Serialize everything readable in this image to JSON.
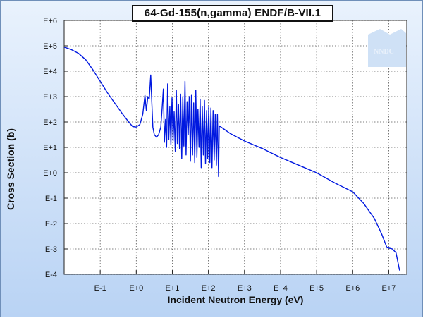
{
  "chart_data": {
    "type": "line",
    "title": "64-Gd-155(n,gamma) ENDF/B-VII.1",
    "xlabel": "Incident Neutron Energy (eV)",
    "ylabel": "Cross Section (b)",
    "x_scale": "log",
    "y_scale": "log",
    "xlim_log10": [
      -2.0,
      7.5
    ],
    "ylim_log10": [
      -4.0,
      6.0
    ],
    "x_ticks": [
      {
        "exp": -1,
        "label": "E-1"
      },
      {
        "exp": 0,
        "label": "E+0"
      },
      {
        "exp": 1,
        "label": "E+1"
      },
      {
        "exp": 2,
        "label": "E+2"
      },
      {
        "exp": 3,
        "label": "E+3"
      },
      {
        "exp": 4,
        "label": "E+4"
      },
      {
        "exp": 5,
        "label": "E+5"
      },
      {
        "exp": 6,
        "label": "E+6"
      },
      {
        "exp": 7,
        "label": "E+7"
      }
    ],
    "y_ticks": [
      {
        "exp": 6,
        "label": "E+6"
      },
      {
        "exp": 5,
        "label": "E+5"
      },
      {
        "exp": 4,
        "label": "E+4"
      },
      {
        "exp": 3,
        "label": "E+3"
      },
      {
        "exp": 2,
        "label": "E+2"
      },
      {
        "exp": 1,
        "label": "E+1"
      },
      {
        "exp": 0,
        "label": "E+0"
      },
      {
        "exp": -1,
        "label": "E-1"
      },
      {
        "exp": -2,
        "label": "E-2"
      },
      {
        "exp": -3,
        "label": "E-3"
      },
      {
        "exp": -4,
        "label": "E-4"
      }
    ],
    "grid": true,
    "series": [
      {
        "name": "64-Gd-155(n,gamma)",
        "color": "#0018e0",
        "points_log10": [
          [
            -2.0,
            4.95
          ],
          [
            -1.8,
            4.85
          ],
          [
            -1.6,
            4.7
          ],
          [
            -1.4,
            4.45
          ],
          [
            -1.2,
            4.05
          ],
          [
            -1.0,
            3.6
          ],
          [
            -0.8,
            3.15
          ],
          [
            -0.6,
            2.75
          ],
          [
            -0.4,
            2.35
          ],
          [
            -0.2,
            1.98
          ],
          [
            -0.1,
            1.82
          ],
          [
            0.0,
            1.8
          ],
          [
            0.1,
            1.9
          ],
          [
            0.18,
            2.3
          ],
          [
            0.24,
            3.05
          ],
          [
            0.28,
            2.45
          ],
          [
            0.32,
            3.0
          ],
          [
            0.36,
            2.9
          ],
          [
            0.4,
            3.85
          ],
          [
            0.43,
            2.8
          ],
          [
            0.46,
            1.8
          ],
          [
            0.5,
            1.5
          ],
          [
            0.56,
            1.4
          ],
          [
            0.62,
            1.5
          ],
          [
            0.68,
            1.8
          ],
          [
            0.72,
            2.6
          ],
          [
            0.75,
            3.3
          ],
          [
            0.78,
            1.2
          ],
          [
            0.81,
            2.1
          ],
          [
            0.84,
            1.0
          ],
          [
            0.87,
            3.5
          ],
          [
            0.9,
            1.3
          ],
          [
            0.93,
            2.6
          ],
          [
            0.96,
            1.1
          ],
          [
            0.99,
            2.95
          ],
          [
            1.02,
            1.25
          ],
          [
            1.05,
            2.4
          ],
          [
            1.08,
            0.85
          ],
          [
            1.11,
            3.25
          ],
          [
            1.14,
            1.15
          ],
          [
            1.17,
            2.7
          ],
          [
            1.2,
            0.95
          ],
          [
            1.23,
            3.1
          ],
          [
            1.26,
            0.55
          ],
          [
            1.29,
            3.0
          ],
          [
            1.32,
            1.05
          ],
          [
            1.35,
            3.6
          ],
          [
            1.38,
            0.7
          ],
          [
            1.41,
            2.8
          ],
          [
            1.44,
            1.5
          ],
          [
            1.47,
            3.0
          ],
          [
            1.5,
            0.45
          ],
          [
            1.53,
            3.05
          ],
          [
            1.56,
            0.7
          ],
          [
            1.59,
            2.75
          ],
          [
            1.62,
            0.4
          ],
          [
            1.65,
            3.25
          ],
          [
            1.68,
            0.6
          ],
          [
            1.71,
            2.5
          ],
          [
            1.74,
            1.0
          ],
          [
            1.77,
            2.9
          ],
          [
            1.8,
            0.2
          ],
          [
            1.83,
            2.6
          ],
          [
            1.86,
            0.7
          ],
          [
            1.89,
            2.85
          ],
          [
            1.92,
            0.35
          ],
          [
            1.95,
            2.45
          ],
          [
            1.98,
            0.55
          ],
          [
            2.01,
            2.6
          ],
          [
            2.04,
            0.4
          ],
          [
            2.07,
            2.55
          ],
          [
            2.1,
            0.2
          ],
          [
            2.13,
            2.45
          ],
          [
            2.16,
            0.5
          ],
          [
            2.19,
            2.3
          ],
          [
            2.22,
            0.3
          ],
          [
            2.25,
            2.3
          ],
          [
            2.28,
            -0.15
          ],
          [
            2.3,
            1.85
          ],
          [
            2.4,
            1.75
          ],
          [
            2.6,
            1.55
          ],
          [
            3.0,
            1.25
          ],
          [
            3.5,
            0.95
          ],
          [
            4.0,
            0.6
          ],
          [
            4.5,
            0.3
          ],
          [
            5.0,
            0.0
          ],
          [
            5.5,
            -0.4
          ],
          [
            6.0,
            -0.75
          ],
          [
            6.3,
            -1.2
          ],
          [
            6.6,
            -1.8
          ],
          [
            6.8,
            -2.4
          ],
          [
            6.95,
            -2.95
          ],
          [
            7.1,
            -3.0
          ],
          [
            7.2,
            -3.15
          ],
          [
            7.3,
            -3.85
          ]
        ]
      }
    ]
  },
  "watermark": {
    "text": "NNDC",
    "color": "#cfe1f6"
  }
}
